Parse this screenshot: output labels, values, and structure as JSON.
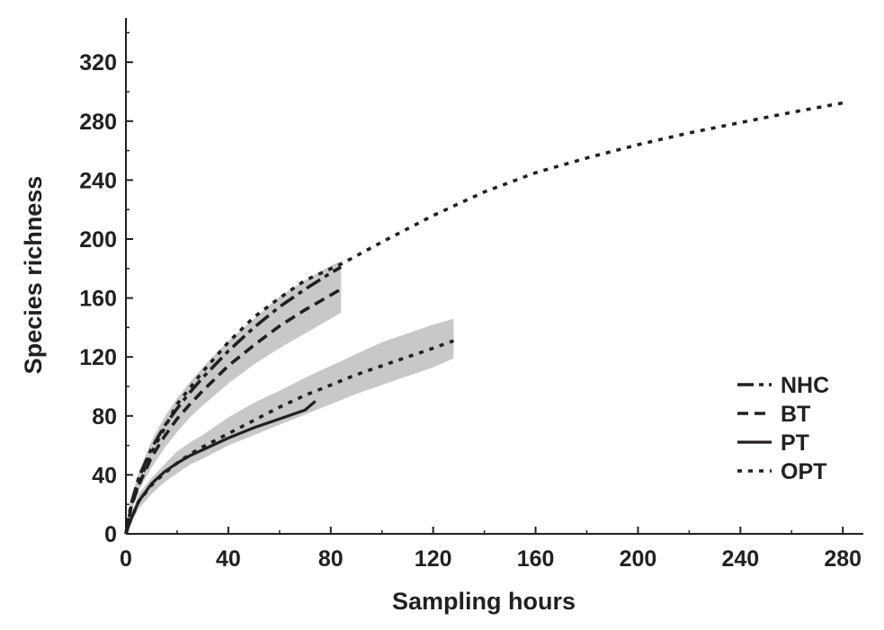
{
  "chart_data": {
    "type": "line",
    "xlabel": "Sampling hours",
    "ylabel": "Species richness",
    "xlim": [
      0,
      288
    ],
    "ylim": [
      0,
      350
    ],
    "xticks": [
      0,
      40,
      80,
      120,
      160,
      200,
      240,
      280
    ],
    "yticks": [
      0,
      40,
      80,
      120,
      160,
      200,
      240,
      280,
      320
    ],
    "grid": false,
    "legend_position": "right",
    "colors": {
      "line": "#231f20",
      "band": "#c8c8c8"
    },
    "series": [
      {
        "name": "NHC",
        "style": "dashdot",
        "x": [
          0,
          2,
          5,
          10,
          15,
          20,
          25,
          30,
          40,
          50,
          60,
          70,
          80,
          84
        ],
        "y": [
          0,
          20,
          38,
          58,
          73,
          85,
          96,
          106,
          124,
          140,
          154,
          166,
          177,
          181
        ],
        "ci_lower": [
          0,
          17,
          33,
          51,
          65,
          77,
          88,
          97,
          114,
          128,
          141,
          152,
          160,
          162
        ],
        "ci_upper": [
          0,
          23,
          42,
          63,
          79,
          92,
          103,
          113,
          131,
          146,
          161,
          172,
          182,
          185
        ]
      },
      {
        "name": "BT",
        "style": "dashed",
        "x": [
          0,
          2,
          5,
          10,
          15,
          20,
          25,
          30,
          40,
          50,
          60,
          70,
          80,
          84
        ],
        "y": [
          0,
          18,
          33,
          52,
          66,
          78,
          88,
          97,
          114,
          128,
          141,
          152,
          162,
          166
        ],
        "ci_lower": [
          0,
          15,
          29,
          45,
          58,
          69,
          79,
          87,
          102,
          115,
          126,
          136,
          146,
          150
        ],
        "ci_upper": [
          0,
          21,
          38,
          59,
          74,
          87,
          97,
          107,
          125,
          141,
          155,
          167,
          178,
          182
        ]
      },
      {
        "name": "PT",
        "style": "solid",
        "x": [
          0,
          2,
          5,
          10,
          15,
          20,
          25,
          30,
          40,
          50,
          60,
          70,
          74
        ],
        "y": [
          0,
          10,
          22,
          34,
          42,
          48,
          53,
          57,
          65,
          72,
          78,
          84,
          90
        ]
      },
      {
        "name": "OPT",
        "style": "dotted",
        "x": [
          0,
          2,
          5,
          10,
          20,
          30,
          40,
          50,
          60,
          70,
          84,
          100,
          120,
          140,
          160,
          180,
          200,
          220,
          240,
          260,
          282
        ],
        "y": [
          0,
          18,
          35,
          55,
          88,
          110,
          130,
          147,
          160,
          172,
          183,
          198,
          216,
          232,
          245,
          255,
          264,
          272,
          279,
          286,
          293
        ],
        "segments": [
          {
            "x": [
              0,
              2,
              5,
              10,
              15,
              20,
              25,
              30,
              40,
              50,
              60,
              70,
              80,
              90,
              100,
              110,
              120,
              128
            ],
            "y": [
              0,
              10,
              22,
              33,
              41,
              48,
              54,
              59,
              68,
              77,
              86,
              94,
              101,
              108,
              114,
              120,
              126,
              131
            ],
            "ci_lower": [
              0,
              7,
              17,
              27,
              35,
              41,
              47,
              51,
              60,
              67,
              74,
              81,
              88,
              95,
              101,
              107,
              113,
              119
            ],
            "ci_upper": [
              0,
              13,
              27,
              38,
              47,
              56,
              62,
              67,
              79,
              89,
              97,
              106,
              114,
              122,
              130,
              136,
              142,
              146
            ]
          }
        ]
      }
    ]
  }
}
